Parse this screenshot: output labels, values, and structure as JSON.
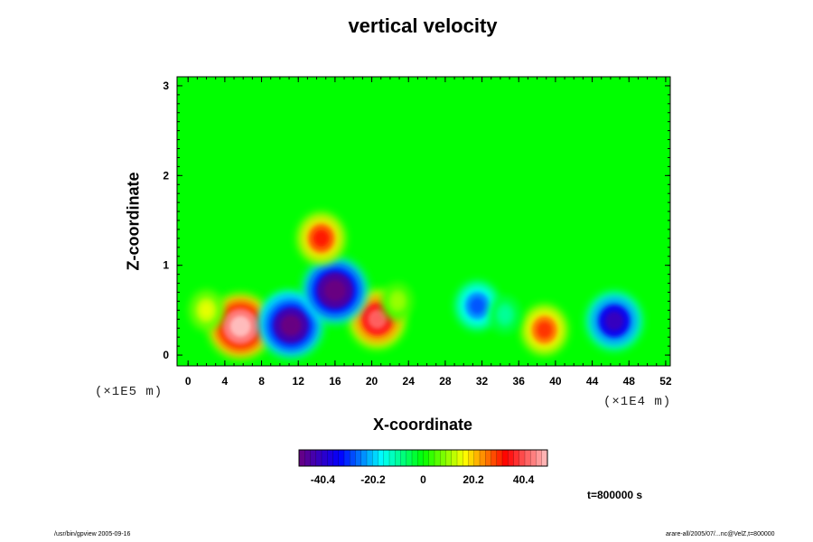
{
  "chart_data": {
    "type": "heatmap",
    "title": "vertical velocity",
    "xlabel": "X-coordinate",
    "ylabel": "Z-coordinate",
    "x_scale_note": "(×1E4 m)",
    "z_scale_note": "(×1E5 m)",
    "x_ticks": [
      0,
      4,
      8,
      12,
      16,
      20,
      24,
      28,
      32,
      36,
      40,
      44,
      48,
      52
    ],
    "z_ticks": [
      0,
      1,
      2,
      3
    ],
    "xlim": [
      -1.2,
      52.5
    ],
    "zlim": [
      -0.12,
      3.1
    ],
    "colorbar": {
      "ticks": [
        "-40.4",
        "-20.2",
        "0",
        "20.2",
        "40.4"
      ],
      "tick_values": [
        -40.4,
        -20.2,
        0,
        20.2,
        40.4
      ],
      "range": [
        -50,
        50
      ],
      "colormap": [
        "#6a0080",
        "#0000ff",
        "#00ffff",
        "#00ff00",
        "#ffff00",
        "#ff0000",
        "#ffc0c0"
      ]
    },
    "features": [
      {
        "x": 5.7,
        "z": 0.32,
        "value": 52
      },
      {
        "x": 10.8,
        "z": 0.4,
        "value": -38
      },
      {
        "x": 11.2,
        "z": 0.33,
        "value": -52
      },
      {
        "x": 20.6,
        "z": 0.4,
        "value": 42
      },
      {
        "x": 16.0,
        "z": 0.72,
        "value": -54
      },
      {
        "x": 14.5,
        "z": 1.3,
        "value": 32
      },
      {
        "x": 31.5,
        "z": 0.55,
        "value": -28
      },
      {
        "x": 38.8,
        "z": 0.28,
        "value": 30
      },
      {
        "x": 46.4,
        "z": 0.38,
        "value": -42
      },
      {
        "x": 22.8,
        "z": 0.6,
        "value": 10
      },
      {
        "x": 34.5,
        "z": 0.45,
        "value": -10
      },
      {
        "x": 2.0,
        "z": 0.5,
        "value": 15
      }
    ],
    "time_label": "t=800000 s"
  },
  "footer": {
    "left": "/usr/bin/gpview 2005-09-16",
    "right": "arare-all/2005/07/...nc@VelZ,t=800000"
  },
  "colors": {
    "background_field": "#00ff00"
  }
}
